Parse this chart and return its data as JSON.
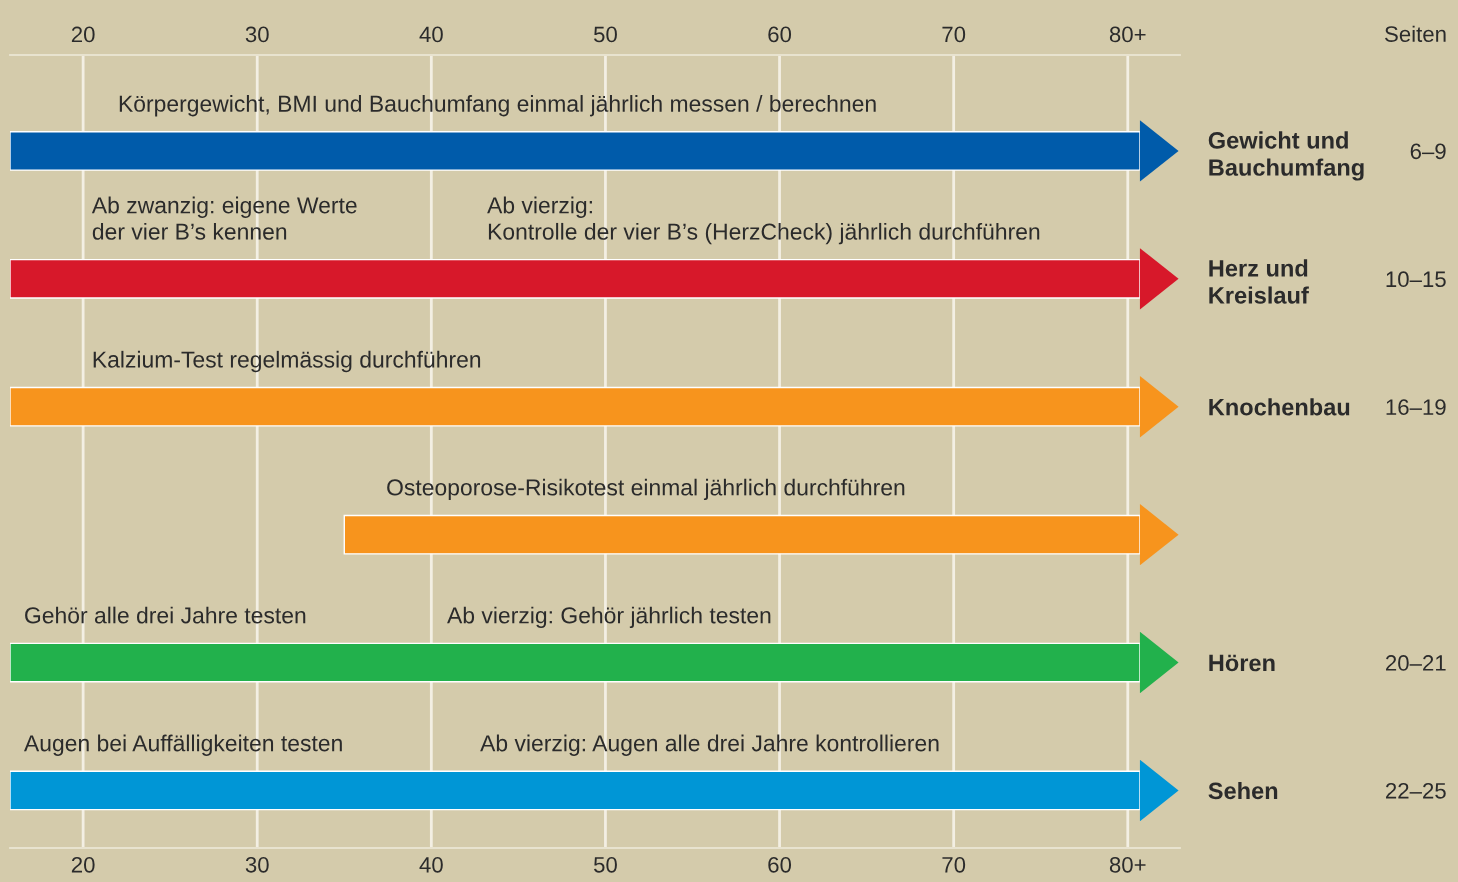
{
  "chart_data": {
    "type": "bar",
    "orientation": "horizontal",
    "categories": [
      "Gewicht und\nBauchumfang",
      "Herz und\nKreislauf",
      "Knochenbau",
      null,
      "Hören",
      "Sehen"
    ],
    "y2_categories": [
      "6–9",
      "10–15",
      "16–19",
      null,
      "20–21",
      "22–25"
    ],
    "base": [
      15.8,
      15.8,
      15.8,
      35.0,
      15.8,
      15.8
    ],
    "values": [
      64.9,
      64.9,
      64.9,
      45.7,
      64.9,
      64.9
    ],
    "colors": [
      "#005baa",
      "#d7182a",
      "#f7941d",
      "#f7941d",
      "#22b14c",
      "#0096d6"
    ],
    "xlim": [
      15.8,
      83
    ],
    "xticks": [
      20,
      30,
      40,
      50,
      60,
      70,
      {
        "value": 80,
        "label": "80+"
      }
    ],
    "x2lim": [
      15.8,
      83
    ],
    "x2ticks": [
      20,
      30,
      40,
      50,
      60,
      70,
      {
        "value": 80,
        "label": "80+"
      }
    ],
    "grid": "x",
    "annotations": [
      "Seiten",
      "Körpergewicht, BMI und Bauchumfang einmal jährlich messen / berechnen",
      "Ab zwanzig: eigene Werte\nder vier B’s kennen",
      "Ab vierzig:\nKontrolle der vier B’s (HerzCheck) jährlich durchführen",
      "Kalzium-Test regelmässig durchführen",
      "Osteoporose-Risikotest einmal jährlich durchführen",
      "Gehör alle drei Jahre testen",
      "Ab vierzig: Gehör jährlich testen",
      "Augen bei Auffälligkeiten testen",
      "Ab vierzig: Augen alle drei Jahre kontrollieren"
    ]
  }
}
